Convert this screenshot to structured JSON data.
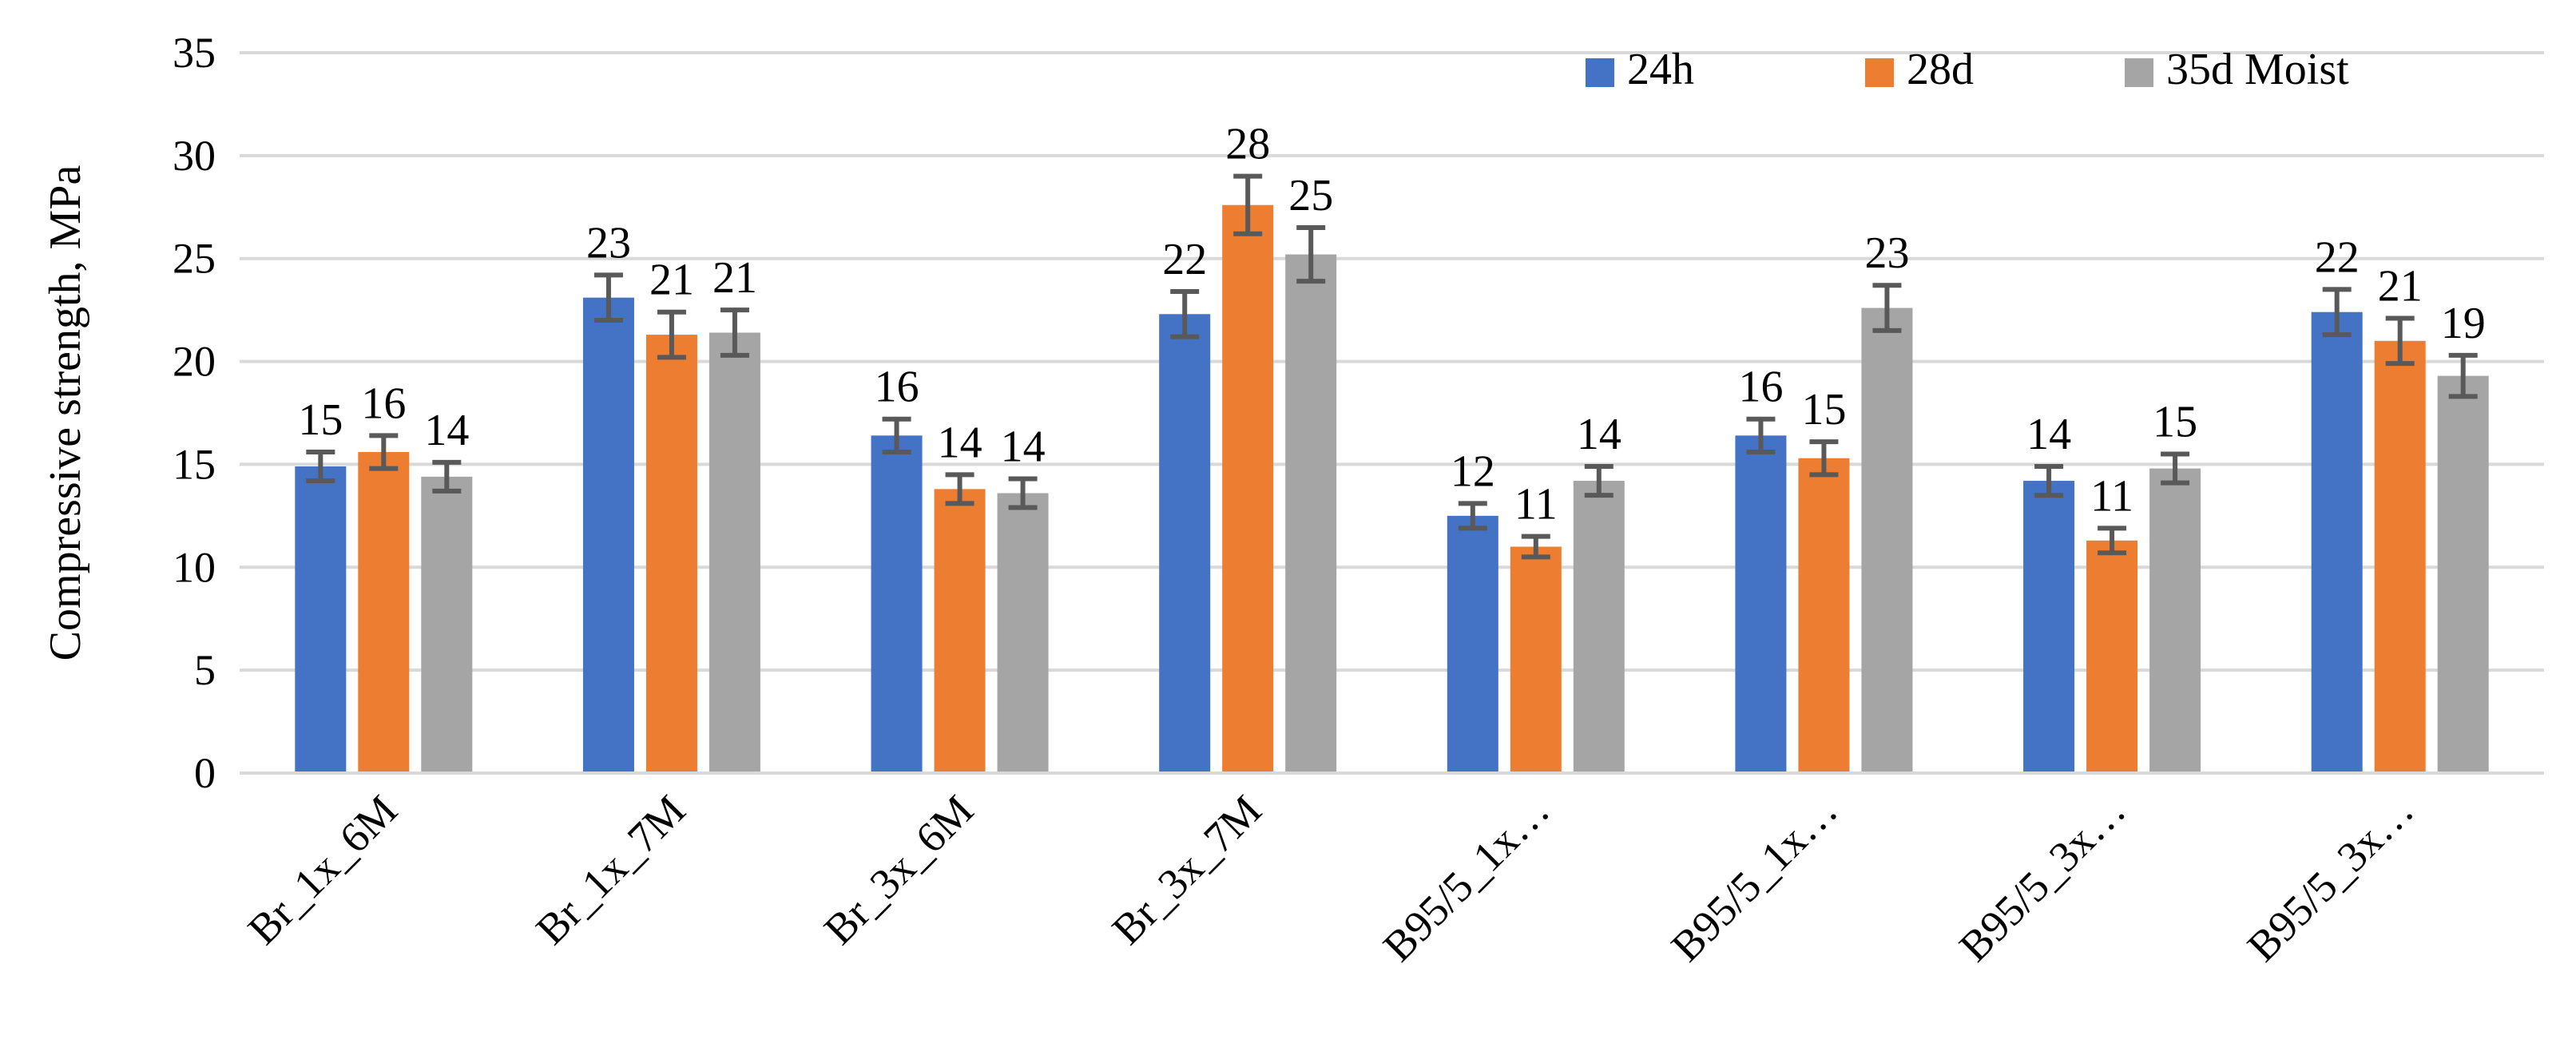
{
  "chart_data": {
    "type": "bar",
    "ylabel": "Compressive strength, MPa",
    "xlabel": "",
    "ylim": [
      0,
      35
    ],
    "yticks": [
      0,
      5,
      10,
      15,
      20,
      25,
      30,
      35
    ],
    "grid": true,
    "legend_position": "top-right",
    "categories": [
      "Br_1x_6M",
      "Br_1x_7M",
      "Br_3x_6M",
      "Br_3x_7M",
      "B95/5_1x…",
      "B95/5_1x…",
      "B95/5_3x…",
      "B95/5_3x…"
    ],
    "series": [
      {
        "name": "24h",
        "color": "#4472C4",
        "values": [
          14.9,
          23.1,
          16.4,
          22.3,
          12.5,
          16.4,
          14.2,
          22.4
        ],
        "labels": [
          "15",
          "23",
          "16",
          "22",
          "12",
          "16",
          "14",
          "22"
        ],
        "errors": [
          0.7,
          1.1,
          0.8,
          1.1,
          0.6,
          0.8,
          0.7,
          1.1
        ]
      },
      {
        "name": "28d",
        "color": "#ED7D31",
        "values": [
          15.6,
          21.3,
          13.8,
          27.6,
          11.0,
          15.3,
          11.3,
          21.0
        ],
        "labels": [
          "16",
          "21",
          "14",
          "28",
          "11",
          "15",
          "11",
          "21"
        ],
        "errors": [
          0.8,
          1.1,
          0.7,
          1.4,
          0.5,
          0.8,
          0.6,
          1.1
        ]
      },
      {
        "name": "35d Moist",
        "color": "#A5A5A5",
        "values": [
          14.4,
          21.4,
          13.6,
          25.2,
          14.2,
          22.6,
          14.8,
          19.3
        ],
        "labels": [
          "14",
          "21",
          "14",
          "25",
          "14",
          "23",
          "15",
          "19"
        ],
        "errors": [
          0.7,
          1.1,
          0.7,
          1.3,
          0.7,
          1.1,
          0.7,
          1.0
        ]
      }
    ]
  }
}
